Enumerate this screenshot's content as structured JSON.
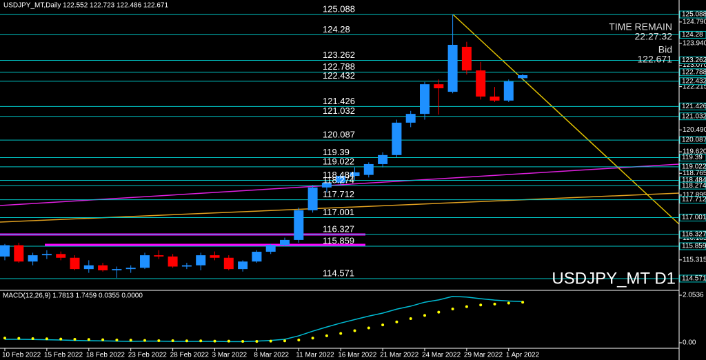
{
  "chart_data": {
    "type": "candlestick",
    "header": "USDJPY_MT,Daily  122.552 122.723 122.486 122.671",
    "time_remain_label": "TIME REMAIN",
    "time_remain": "22:27:32",
    "bid_label": "Bid",
    "bid": "122.671",
    "symbol_label": "USDJPY_MT D1",
    "up_color": "#1e90ff",
    "down_color": "#ff0000",
    "level_color": "#00c8c8",
    "categories": [
      "10 Feb 2022",
      null,
      null,
      "15 Feb 2022",
      null,
      null,
      "18 Feb 2022",
      null,
      null,
      "23 Feb 2022",
      null,
      null,
      "28 Feb 2022",
      null,
      null,
      "3 Mar 2022",
      null,
      null,
      "8 Mar 2022",
      null,
      null,
      "11 Mar 2022",
      null,
      null,
      "16 Mar 2022",
      null,
      null,
      "21 Mar 2022",
      null,
      null,
      "24 Mar 2022",
      null,
      null,
      "29 Mar 2022",
      null,
      null,
      "1 Apr 2022",
      null
    ],
    "open": [
      115.45,
      115.9,
      115.25,
      115.5,
      115.55,
      115.4,
      114.95,
      115.1,
      114.9,
      114.95,
      115.0,
      115.5,
      115.45,
      115.05,
      115.1,
      115.5,
      115.4,
      114.95,
      115.25,
      115.64,
      115.91,
      116.11,
      117.29,
      118.2,
      118.39,
      118.66,
      118.7,
      119.13,
      119.49,
      120.78,
      121.13,
      122.31,
      122.01,
      123.8,
      122.86,
      121.82,
      121.66,
      122.552
    ],
    "high": [
      115.95,
      116.0,
      115.6,
      115.7,
      115.65,
      115.5,
      115.3,
      115.2,
      115.05,
      115.1,
      115.6,
      115.7,
      115.55,
      115.2,
      115.6,
      115.65,
      115.5,
      115.3,
      115.7,
      115.95,
      116.2,
      117.4,
      118.3,
      118.45,
      118.75,
      119.0,
      119.2,
      119.6,
      120.9,
      121.25,
      122.4,
      122.5,
      125.088,
      124.0,
      123.2,
      122.2,
      122.5,
      122.723
    ],
    "low": [
      115.3,
      115.2,
      115.1,
      115.35,
      115.3,
      114.9,
      114.8,
      114.85,
      114.6,
      114.8,
      114.95,
      115.35,
      115.0,
      114.95,
      114.9,
      115.3,
      114.9,
      114.85,
      115.2,
      115.55,
      115.85,
      116.0,
      117.2,
      118.0,
      118.3,
      118.5,
      118.6,
      119.0,
      119.4,
      120.6,
      120.9,
      121.1,
      121.95,
      122.7,
      121.7,
      121.6,
      121.6,
      122.486
    ],
    "close": [
      115.9,
      115.25,
      115.5,
      115.55,
      115.4,
      114.95,
      115.1,
      114.9,
      114.95,
      115.0,
      115.5,
      115.45,
      115.05,
      115.1,
      115.5,
      115.4,
      114.95,
      115.25,
      115.64,
      115.91,
      116.11,
      117.29,
      118.2,
      118.39,
      118.66,
      118.8,
      119.13,
      119.49,
      120.78,
      121.13,
      122.31,
      122.15,
      123.88,
      122.86,
      121.82,
      121.66,
      122.42,
      122.671
    ],
    "ylim": [
      114.13,
      125.665
    ],
    "levels": [
      125.088,
      124.28,
      123.262,
      122.788,
      122.432,
      121.426,
      121.032,
      120.087,
      119.39,
      119.022,
      118.484,
      118.274,
      117.712,
      117.001,
      116.327,
      115.859,
      114.571
    ],
    "yticks": [
      {
        "value": 124.79,
        "label": "124.790"
      },
      {
        "value": 123.94,
        "label": "123.940"
      },
      {
        "value": 123.07,
        "label": "123.070"
      },
      {
        "value": 122.215,
        "label": "122.215"
      },
      {
        "value": 120.49,
        "label": "120.490"
      },
      {
        "value": 119.62,
        "label": "119.620"
      },
      {
        "value": 118.765,
        "label": "118.765"
      },
      {
        "value": 117.895,
        "label": "117.895"
      },
      {
        "value": 116.185,
        "label": "116.185"
      },
      {
        "value": 115.315,
        "label": "115.315"
      }
    ],
    "macd": {
      "title": "MACD(12,26,9) 1.7813 1.7459 0.0355 0.0000",
      "ylim": [
        -0.2098,
        2.0536
      ],
      "yticks": [
        {
          "value": 2.0536,
          "label": "2.0536"
        },
        {
          "value": 0,
          "label": "0.00"
        }
      ],
      "macd_color": "#00bcd4",
      "signal_color": "#ffff00",
      "macd_values": [
        0.15,
        0.15,
        0.14,
        0.13,
        0.12,
        0.1,
        0.09,
        0.08,
        0.07,
        0.06,
        0.07,
        0.07,
        0.06,
        0.06,
        0.06,
        0.06,
        0.05,
        0.05,
        0.07,
        0.1,
        0.15,
        0.3,
        0.5,
        0.68,
        0.85,
        1.0,
        1.15,
        1.28,
        1.45,
        1.58,
        1.75,
        1.85,
        2.0,
        1.97,
        1.9,
        1.84,
        1.8,
        1.78
      ],
      "signal_values": [
        0.2,
        0.19,
        0.18,
        0.17,
        0.16,
        0.15,
        0.14,
        0.13,
        0.12,
        0.11,
        0.1,
        0.09,
        0.09,
        0.08,
        0.08,
        0.07,
        0.07,
        0.06,
        0.06,
        0.07,
        0.08,
        0.12,
        0.2,
        0.3,
        0.4,
        0.52,
        0.64,
        0.77,
        0.9,
        1.04,
        1.18,
        1.32,
        1.46,
        1.56,
        1.63,
        1.67,
        1.71,
        1.75
      ]
    }
  }
}
